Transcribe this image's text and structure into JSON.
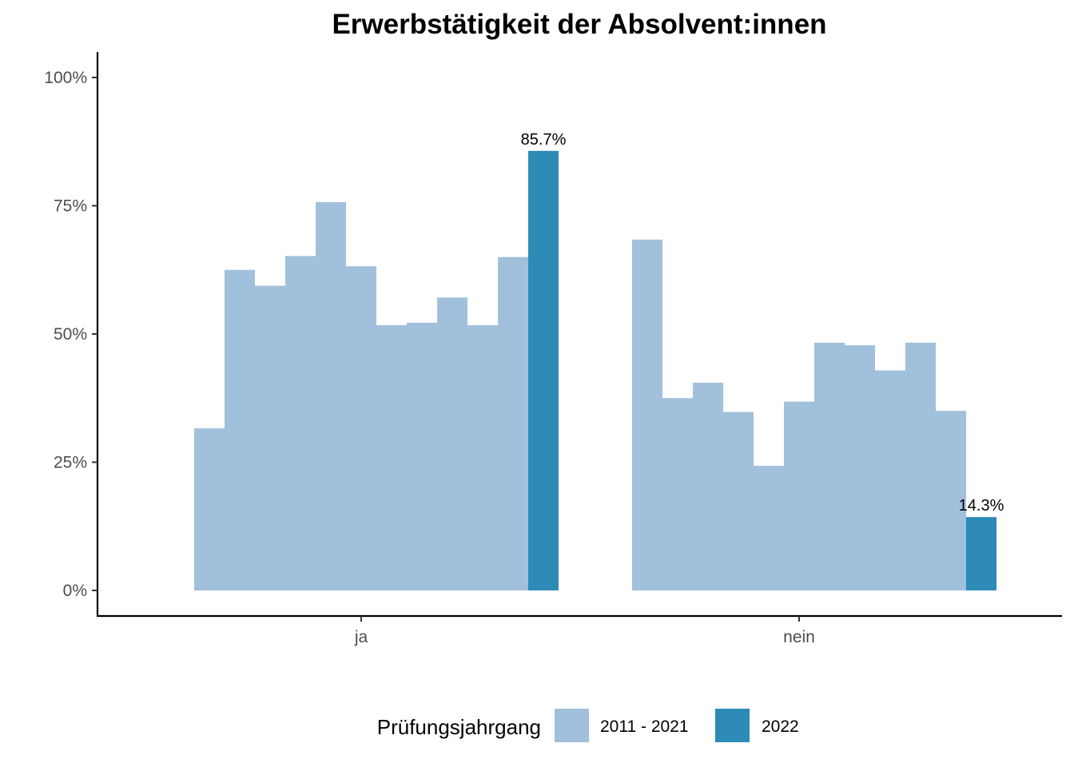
{
  "chart_data": {
    "type": "bar",
    "title": "Erwerbstätigkeit der Absolvent:innen",
    "xlabel": "",
    "ylabel": "",
    "ylim": [
      0,
      1
    ],
    "y_ticks": [
      "0%",
      "25%",
      "50%",
      "75%",
      "100%"
    ],
    "categories": [
      "ja",
      "nein"
    ],
    "legend_title": "Prüfungsjahrgang",
    "legend_position": "bottom",
    "series": [
      {
        "name": "2011 - 2021",
        "color": "#a1c0dc",
        "values_by_category": {
          "ja": [
            0.316,
            0.625,
            0.594,
            0.652,
            0.757,
            0.632,
            0.517,
            0.522,
            0.571,
            0.517,
            0.65
          ],
          "nein": [
            0.684,
            0.375,
            0.405,
            0.348,
            0.243,
            0.368,
            0.483,
            0.478,
            0.429,
            0.483,
            0.35
          ]
        }
      },
      {
        "name": "2022",
        "color": "#2e8bb8",
        "values_by_category": {
          "ja": [
            0.857
          ],
          "nein": [
            0.143
          ]
        },
        "labels": [
          "85.7%",
          "14.3%"
        ]
      }
    ]
  }
}
